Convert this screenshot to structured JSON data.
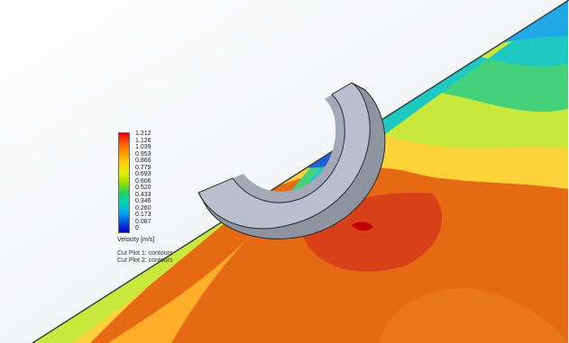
{
  "legend": {
    "ticks": [
      "1.212",
      "1.126",
      "1.039",
      "0.953",
      "0.866",
      "0.779",
      "0.693",
      "0.606",
      "0.520",
      "0.433",
      "0.346",
      "0.260",
      "0.173",
      "0.087",
      "0"
    ],
    "title": "Velocity [m/s]"
  },
  "cut_plots": [
    "Cut Plot 1: contours",
    "Cut Plot 2: contours"
  ],
  "colors": {
    "max": "#e80000",
    "mid": "#22d25a",
    "min": "#0000c0",
    "part": "#b9bfcc"
  }
}
